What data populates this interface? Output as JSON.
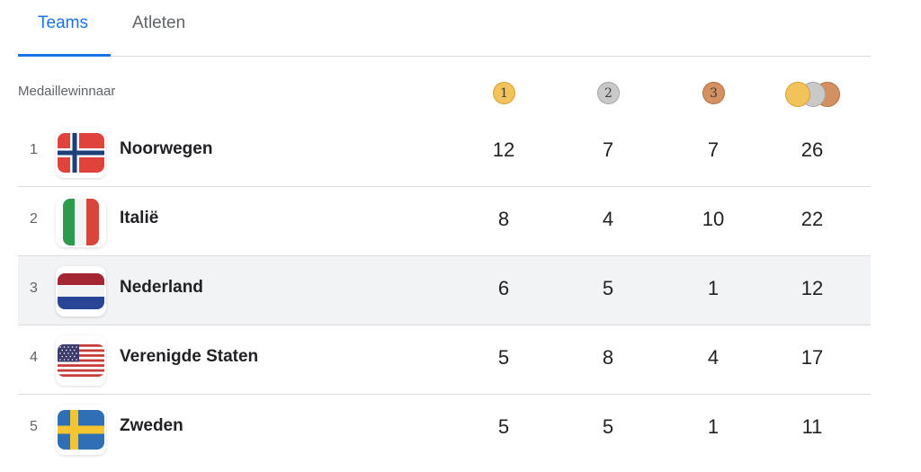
{
  "tabs": [
    {
      "label": "Teams",
      "active": true
    },
    {
      "label": "Atleten",
      "active": false
    }
  ],
  "table": {
    "header_label": "Medaillewinnaar",
    "medal_icons": {
      "gold": "1",
      "silver": "2",
      "bronze": "3",
      "total": "medals-stack-icon"
    },
    "rows": [
      {
        "rank": "1",
        "country": "Noorwegen",
        "flag": "norway-flag-icon",
        "gold": "12",
        "silver": "7",
        "bronze": "7",
        "total": "26"
      },
      {
        "rank": "2",
        "country": "Italië",
        "flag": "italy-flag-icon",
        "gold": "8",
        "silver": "4",
        "bronze": "10",
        "total": "22"
      },
      {
        "rank": "3",
        "country": "Nederland",
        "flag": "netherlands-flag-icon",
        "gold": "6",
        "silver": "5",
        "bronze": "1",
        "total": "12"
      },
      {
        "rank": "4",
        "country": "Verenigde Staten",
        "flag": "usa-flag-icon",
        "gold": "5",
        "silver": "8",
        "bronze": "4",
        "total": "17"
      },
      {
        "rank": "5",
        "country": "Zweden",
        "flag": "sweden-flag-icon",
        "gold": "5",
        "silver": "5",
        "bronze": "1",
        "total": "11"
      }
    ]
  },
  "colors": {
    "accent": "#1a73e8",
    "gold": "#f2c35b",
    "silver": "#c9c9c9",
    "bronze": "#d49060",
    "row_highlight": "#f1f3f4"
  }
}
